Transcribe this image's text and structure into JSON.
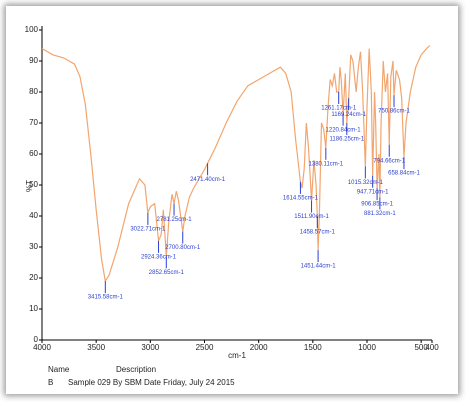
{
  "chart_data": {
    "type": "line",
    "x_label": "cm-1",
    "y_label": "%T",
    "xlim": [
      4000,
      400
    ],
    "ylim": [
      0,
      100
    ],
    "xticks": [
      4000,
      3500,
      3000,
      2500,
      2000,
      1500,
      1000,
      500,
      400
    ],
    "yticks": [
      0,
      10,
      20,
      30,
      40,
      50,
      60,
      70,
      80,
      90,
      100
    ],
    "series": [
      {
        "color": "#f2a56e",
        "x": [
          4000,
          3900,
          3800,
          3700,
          3650,
          3600,
          3550,
          3500,
          3450,
          3415.58,
          3380,
          3300,
          3200,
          3100,
          3050,
          3022.71,
          3000,
          2960,
          2924.36,
          2900,
          2880,
          2852.65,
          2830,
          2800,
          2781.25,
          2760,
          2740,
          2720,
          2700.8,
          2680,
          2640,
          2600,
          2550,
          2500,
          2471.4,
          2400,
          2300,
          2200,
          2100,
          2000,
          1900,
          1800,
          1750,
          1700,
          1660,
          1614.55,
          1600,
          1580,
          1560,
          1540,
          1511.9,
          1490,
          1470,
          1458.57,
          1451.44,
          1440,
          1420,
          1400,
          1380.11,
          1360,
          1340,
          1320,
          1300,
          1280,
          1261.17,
          1250,
          1238,
          1220.84,
          1200,
          1186.25,
          1169.24,
          1150,
          1130,
          1100,
          1080,
          1060,
          1040,
          1015.32,
          1000,
          980,
          960,
          947.71,
          930,
          920,
          906.85,
          890,
          881.32,
          870,
          850,
          830,
          810,
          794.66,
          780,
          760,
          750.86,
          730,
          700,
          680,
          658.84,
          640,
          600,
          550,
          500,
          450,
          420
        ],
        "values": [
          94,
          92,
          91,
          89,
          85,
          76,
          60,
          42,
          26,
          19,
          21,
          30,
          44,
          52,
          50,
          41,
          43,
          44,
          32,
          34,
          42,
          27,
          38,
          47,
          44,
          48,
          45,
          40,
          35,
          40,
          46,
          49,
          52,
          55,
          57,
          62,
          70,
          77,
          82,
          84,
          86,
          88,
          86,
          80,
          65,
          51,
          49,
          55,
          70,
          62,
          45,
          58,
          50,
          40,
          29,
          40,
          70,
          68,
          62,
          75,
          84,
          82,
          86,
          80,
          80,
          88,
          84,
          73,
          86,
          70,
          78,
          92,
          90,
          80,
          88,
          93,
          80,
          56,
          75,
          94,
          80,
          53,
          80,
          70,
          49,
          60,
          46,
          70,
          90,
          80,
          86,
          63,
          85,
          90,
          79,
          87,
          84,
          78,
          59,
          70,
          80,
          88,
          92,
          94,
          95
        ]
      }
    ],
    "peak_color": "#2b3fd0",
    "peaks": [
      {
        "x": 3415.58,
        "y": 19,
        "label": "3415.58cm-1"
      },
      {
        "x": 3022.71,
        "y": 41,
        "label": "3022.71cm-1"
      },
      {
        "x": 2924.36,
        "y": 32,
        "label": "2924.36cm-1"
      },
      {
        "x": 2852.65,
        "y": 27,
        "label": "2852.65cm-1"
      },
      {
        "x": 2781.25,
        "y": 44,
        "label": "2781.25cm-1"
      },
      {
        "x": 2700.8,
        "y": 35,
        "label": "2700.80cm-1"
      },
      {
        "x": 2471.4,
        "y": 57,
        "label": "2471.40cm-1"
      },
      {
        "x": 1614.55,
        "y": 51,
        "label": "1614.55cm-1"
      },
      {
        "x": 1511.9,
        "y": 45,
        "label": "1511.90cm-1"
      },
      {
        "x": 1458.57,
        "y": 40,
        "label": "1458.57cm-1"
      },
      {
        "x": 1451.44,
        "y": 29,
        "label": "1451.44cm-1"
      },
      {
        "x": 1380.11,
        "y": 62,
        "label": "1380.11cm-1"
      },
      {
        "x": 1261.17,
        "y": 80,
        "label": "1261.17cm-1"
      },
      {
        "x": 1220.84,
        "y": 73,
        "label": "1220.84cm-1"
      },
      {
        "x": 1186.25,
        "y": 70,
        "label": "1186.25cm-1"
      },
      {
        "x": 1169.24,
        "y": 78,
        "label": "1169.24cm-1"
      },
      {
        "x": 1015.32,
        "y": 56,
        "label": "1015.32cm-1"
      },
      {
        "x": 947.71,
        "y": 53,
        "label": "947.71cm-1"
      },
      {
        "x": 906.85,
        "y": 49,
        "label": "906.85cm-1"
      },
      {
        "x": 881.32,
        "y": 46,
        "label": "881.32cm-1"
      },
      {
        "x": 794.66,
        "y": 63,
        "label": "794.66cm-1"
      },
      {
        "x": 750.86,
        "y": 79,
        "label": "750.86cm-1"
      },
      {
        "x": 658.84,
        "y": 59,
        "label": "658.84cm-1"
      }
    ]
  },
  "table": {
    "headers": [
      "Name",
      "Description"
    ],
    "rows": [
      [
        "B",
        "Sample 029 By SBM Date Friday, July 24 2015"
      ]
    ]
  }
}
